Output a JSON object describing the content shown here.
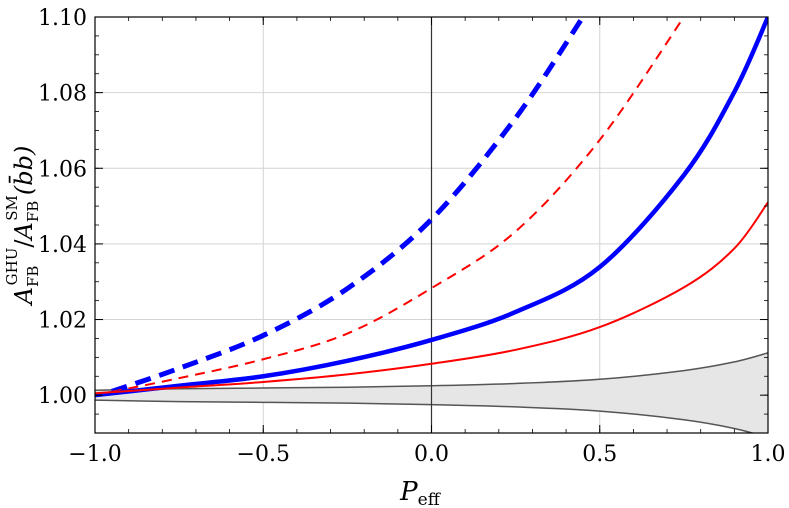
{
  "chart_data": {
    "type": "line",
    "title": "",
    "xlabel": {
      "main": "P",
      "sub": "eff"
    },
    "ylabel": {
      "num": "A",
      "num_sub": "FB",
      "num_sup": "GHU",
      "slash": "/",
      "den": "A",
      "den_sub": "FB",
      "den_sup": "SM",
      "arg": "(b̄b)"
    },
    "xlim": [
      -1.0,
      1.0
    ],
    "ylim": [
      0.99,
      1.1
    ],
    "grid": true,
    "xticks": [
      -1.0,
      -0.5,
      0.0,
      0.5,
      1.0
    ],
    "xtick_labels": [
      "−1.0",
      "−0.5",
      "0.0",
      "0.5",
      "1.0"
    ],
    "yticks": [
      1.0,
      1.02,
      1.04,
      1.06,
      1.08,
      1.1
    ],
    "ytick_labels": [
      "1.00",
      "1.02",
      "1.04",
      "1.06",
      "1.08",
      "1.10"
    ],
    "band": {
      "color": "#e6e6e6",
      "edge_color": "#555555",
      "x": [
        -1.0,
        -0.75,
        -0.5,
        -0.25,
        0.0,
        0.25,
        0.5,
        0.75,
        0.9,
        1.0
      ],
      "upper": [
        1.0013,
        1.0017,
        1.0019,
        1.0021,
        1.0025,
        1.0031,
        1.0042,
        1.0065,
        1.0088,
        1.0112
      ],
      "lower": [
        0.9987,
        0.9983,
        0.9981,
        0.9979,
        0.9975,
        0.9969,
        0.9958,
        0.9935,
        0.9912,
        0.9888
      ]
    },
    "series": [
      {
        "color": "#0000ff",
        "width": 5,
        "dash": "16 9",
        "x": [
          -0.95,
          -0.75,
          -0.5,
          -0.25,
          0.0,
          0.25,
          0.45
        ],
        "y": [
          1.001,
          1.0071,
          1.0158,
          1.0282,
          1.0465,
          1.0733,
          1.1
        ]
      },
      {
        "color": "#ff0000",
        "width": 2,
        "dash": "10 7",
        "x": [
          -0.95,
          -0.75,
          -0.5,
          -0.25,
          0.0,
          0.25,
          0.5,
          0.75
        ],
        "y": [
          1.0009,
          1.0045,
          1.0095,
          1.0163,
          1.0283,
          1.0433,
          1.0675,
          1.1
        ]
      },
      {
        "color": "#0000ff",
        "width": 4.5,
        "dash": "",
        "x": [
          -1.0,
          -0.75,
          -0.5,
          -0.25,
          0.0,
          0.25,
          0.5,
          0.75,
          0.9,
          1.0
        ],
        "y": [
          1.0,
          1.0025,
          1.005,
          1.0091,
          1.0146,
          1.022,
          1.0339,
          1.0582,
          1.0802,
          1.1
        ]
      },
      {
        "color": "#ff0000",
        "width": 2,
        "dash": "",
        "x": [
          -1.0,
          -0.75,
          -0.5,
          -0.25,
          0.0,
          0.25,
          0.5,
          0.75,
          0.9,
          1.0
        ],
        "y": [
          1.0005,
          1.002,
          1.0035,
          1.0055,
          1.0083,
          1.012,
          1.018,
          1.0285,
          1.0388,
          1.051
        ]
      }
    ]
  }
}
